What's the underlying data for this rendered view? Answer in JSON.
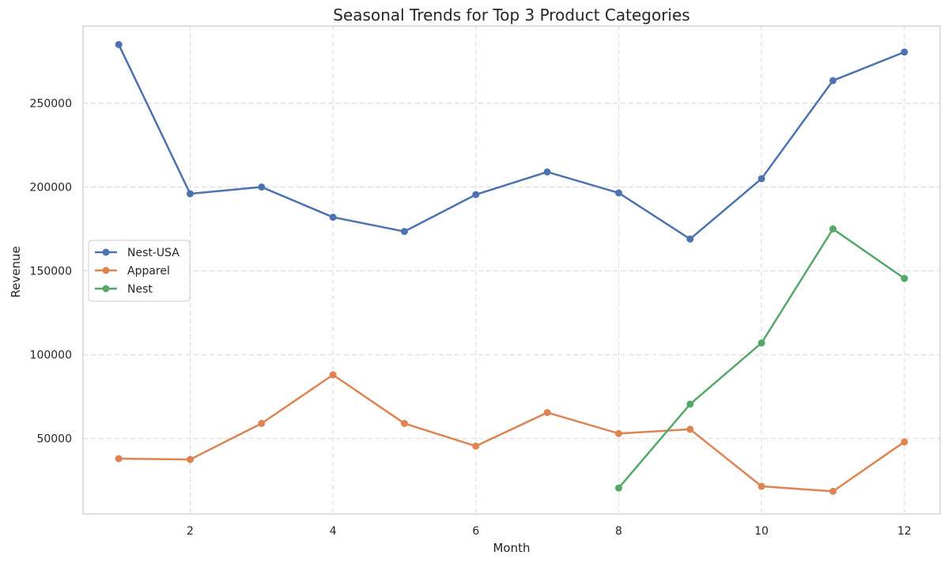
{
  "chart_data": {
    "type": "line",
    "title": "Seasonal Trends for Top 3 Product Categories",
    "xlabel": "Month",
    "ylabel": "Revenue",
    "xlim": [
      0.5,
      12.5
    ],
    "ylim": [
      5000,
      296000
    ],
    "xticks": [
      2,
      4,
      6,
      8,
      10,
      12
    ],
    "yticks": [
      50000,
      100000,
      150000,
      200000,
      250000
    ],
    "grid": true,
    "legend_position": "center-left",
    "series": [
      {
        "name": "Nest-USA",
        "color": "#4c72b0",
        "x": [
          1,
          2,
          3,
          4,
          5,
          6,
          7,
          8,
          9,
          10,
          11,
          12
        ],
        "y": [
          285000,
          196000,
          200000,
          182000,
          173500,
          195500,
          209000,
          196500,
          169000,
          205000,
          263500,
          280500
        ]
      },
      {
        "name": "Apparel",
        "color": "#dd8452",
        "x": [
          1,
          2,
          3,
          4,
          5,
          6,
          7,
          8,
          9,
          10,
          11,
          12
        ],
        "y": [
          38000,
          37500,
          59000,
          88000,
          59000,
          45500,
          65500,
          53000,
          55500,
          21500,
          18500,
          48000
        ]
      },
      {
        "name": "Nest",
        "color": "#55a868",
        "x": [
          8,
          9,
          10,
          11,
          12
        ],
        "y": [
          20500,
          70500,
          107000,
          175000,
          145500
        ]
      }
    ]
  }
}
